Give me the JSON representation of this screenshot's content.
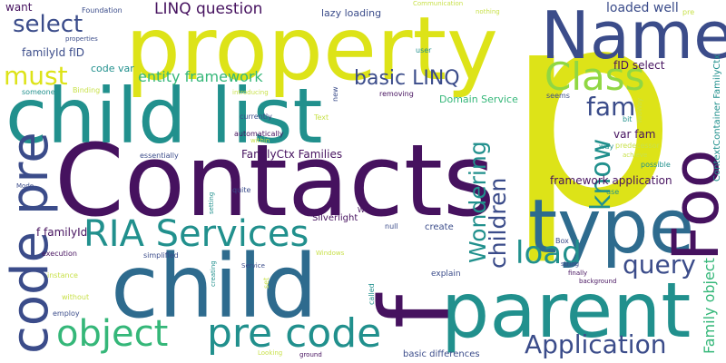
{
  "colors": {
    "purple": "#46125f",
    "indigo": "#3b4c8a",
    "blue": "#2e6b8e",
    "teal": "#21908d",
    "green": "#35b779",
    "lime": "#90d743",
    "yellow": "#dde318",
    "pale": "#c9e14c"
  },
  "words": [
    {
      "text": "p",
      "color": "yellow"
    },
    {
      "text": "Contacts",
      "color": "purple"
    },
    {
      "text": "property",
      "color": "yellow"
    },
    {
      "text": "child list",
      "color": "teal"
    },
    {
      "text": "child",
      "color": "blue"
    },
    {
      "text": "f",
      "color": "purple"
    },
    {
      "text": "parent",
      "color": "teal"
    },
    {
      "text": "type",
      "color": "blue"
    },
    {
      "text": "Name",
      "color": "indigo"
    },
    {
      "text": "Foo",
      "color": "purple"
    },
    {
      "text": "code pre",
      "color": "indigo"
    },
    {
      "text": "RIA Services",
      "color": "teal"
    },
    {
      "text": "pre code",
      "color": "teal"
    },
    {
      "text": "object",
      "color": "green"
    },
    {
      "text": "Class",
      "color": "lime"
    },
    {
      "text": "load",
      "color": "teal"
    },
    {
      "text": "query",
      "color": "indigo"
    },
    {
      "text": "Application",
      "color": "indigo"
    },
    {
      "text": "Wondering",
      "color": "teal"
    },
    {
      "text": "children",
      "color": "indigo"
    },
    {
      "text": "know",
      "color": "teal"
    },
    {
      "text": "fam",
      "color": "indigo"
    },
    {
      "text": "select",
      "color": "indigo"
    },
    {
      "text": "must",
      "color": "yellow"
    },
    {
      "text": "basic LINQ",
      "color": "indigo"
    },
    {
      "text": "LINQ question",
      "color": "purple"
    },
    {
      "text": "entity framework",
      "color": "green"
    },
    {
      "text": "Family object",
      "color": "green"
    },
    {
      "text": "loaded well",
      "color": "indigo"
    },
    {
      "text": "fID select",
      "color": "purple"
    },
    {
      "text": "var fam",
      "color": "purple"
    },
    {
      "text": "framework application",
      "color": "purple"
    },
    {
      "text": "FamilyCtx Families",
      "color": "purple"
    },
    {
      "text": "f familyId",
      "color": "purple"
    },
    {
      "text": "familyId fID",
      "color": "indigo"
    },
    {
      "text": "code var",
      "color": "teal"
    },
    {
      "text": "lazy loading",
      "color": "indigo"
    },
    {
      "text": "Domain Service",
      "color": "green"
    },
    {
      "text": "basic differences",
      "color": "indigo"
    },
    {
      "text": "ContextContainer FamilyCtx",
      "color": "teal"
    },
    {
      "text": "Silverlight",
      "color": "purple"
    },
    {
      "text": "create",
      "color": "indigo"
    },
    {
      "text": "explain",
      "color": "indigo"
    },
    {
      "text": "want",
      "color": "purple"
    },
    {
      "text": "Foundation",
      "color": "indigo"
    },
    {
      "text": "Communication",
      "color": "pale"
    },
    {
      "text": "nothing",
      "color": "pale"
    },
    {
      "text": "pre",
      "color": "pale"
    },
    {
      "text": "properties",
      "color": "indigo"
    },
    {
      "text": "user",
      "color": "teal"
    },
    {
      "text": "someone",
      "color": "teal"
    },
    {
      "text": "Binding",
      "color": "pale"
    },
    {
      "text": "introducing",
      "color": "pale"
    },
    {
      "text": "new",
      "color": "indigo"
    },
    {
      "text": "removing",
      "color": "purple"
    },
    {
      "text": "seems",
      "color": "indigo"
    },
    {
      "text": "TwoWay",
      "color": "pale"
    },
    {
      "text": "bit",
      "color": "teal"
    },
    {
      "text": "currently",
      "color": "indigo"
    },
    {
      "text": "Text",
      "color": "pale"
    },
    {
      "text": "automatically",
      "color": "purple"
    },
    {
      "text": "within",
      "color": "pale"
    },
    {
      "text": "essentially",
      "color": "indigo"
    },
    {
      "text": "way",
      "color": "teal"
    },
    {
      "text": "predecessor",
      "color": "pale"
    },
    {
      "text": "achieve",
      "color": "pale"
    },
    {
      "text": "possible",
      "color": "teal"
    },
    {
      "text": "Mode",
      "color": "indigo"
    },
    {
      "text": "quite",
      "color": "indigo"
    },
    {
      "text": "setting",
      "color": "teal"
    },
    {
      "text": "use",
      "color": "teal"
    },
    {
      "text": "WCF",
      "color": "purple"
    },
    {
      "text": "null",
      "color": "indigo"
    },
    {
      "text": "execution",
      "color": "purple"
    },
    {
      "text": "simplified",
      "color": "indigo"
    },
    {
      "text": "Windows",
      "color": "pale"
    },
    {
      "text": "Box",
      "color": "indigo"
    },
    {
      "text": "instance",
      "color": "pale"
    },
    {
      "text": "Service",
      "color": "indigo"
    },
    {
      "text": "string",
      "color": "indigo"
    },
    {
      "text": "finally",
      "color": "purple"
    },
    {
      "text": "background",
      "color": "purple"
    },
    {
      "text": "without",
      "color": "pale"
    },
    {
      "text": "creating",
      "color": "teal"
    },
    {
      "text": "set",
      "color": "pale"
    },
    {
      "text": "called",
      "color": "teal"
    },
    {
      "text": "employ",
      "color": "indigo"
    },
    {
      "text": "Looking",
      "color": "pale"
    },
    {
      "text": "ground",
      "color": "purple"
    }
  ]
}
